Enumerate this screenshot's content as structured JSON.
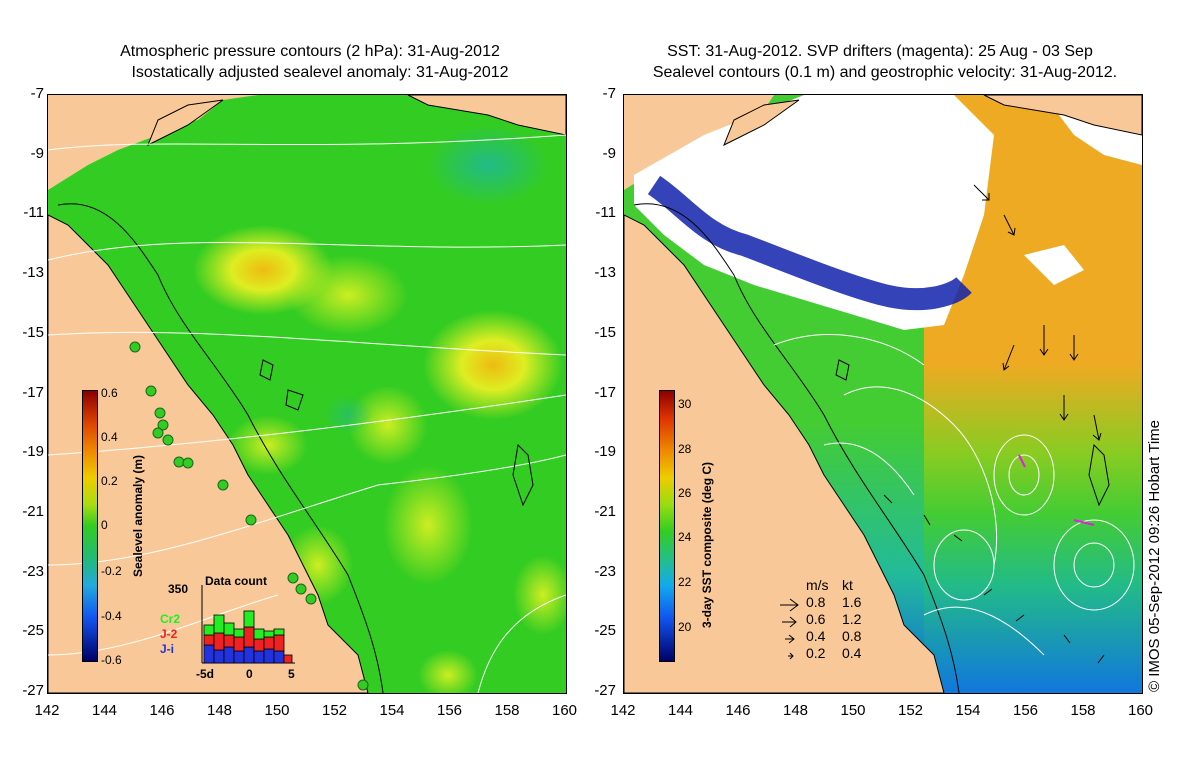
{
  "left_panel": {
    "title_line1": "Atmospheric pressure contours (2 hPa): 31-Aug-2012",
    "title_line2": "Isostatically adjusted sealevel anomaly: 31-Aug-2012",
    "colorbar_title": "Sealevel anomaly (m)",
    "colorbar_ticks": [
      "0.6",
      "0.4",
      "0.2",
      "0",
      "-0.2",
      "-0.4",
      "-0.6"
    ],
    "inset": {
      "title": "Data count",
      "ymax_label": "350",
      "legend": [
        {
          "label": "Cr2",
          "color": "#22ee22"
        },
        {
          "label": "J-2",
          "color": "#ee2222"
        },
        {
          "label": "J-i",
          "color": "#2233dd"
        }
      ],
      "xticks": [
        "-5d",
        "0",
        "5"
      ]
    }
  },
  "right_panel": {
    "title_line1": "SST: 31-Aug-2012. SVP drifters (magenta): 25 Aug - 03 Sep",
    "title_line2": "Sealevel contours (0.1 m) and geostrophic velocity: 31-Aug-2012.",
    "colorbar_title": "3-day SST composite (deg C)",
    "colorbar_ticks": [
      "30",
      "28",
      "26",
      "24",
      "22",
      "20"
    ],
    "velocity_legend": {
      "header_ms": "m/s",
      "header_kt": "kt",
      "rows": [
        {
          "ms": "0.8",
          "kt": "1.6"
        },
        {
          "ms": "0.6",
          "kt": "1.2"
        },
        {
          "ms": "0.4",
          "kt": "0.8"
        },
        {
          "ms": "0.2",
          "kt": "0.4"
        }
      ]
    }
  },
  "axes": {
    "yticks": [
      "-7",
      "-9",
      "-11",
      "-13",
      "-15",
      "-17",
      "-19",
      "-21",
      "-23",
      "-25",
      "-27"
    ],
    "xticks": [
      "142",
      "144",
      "146",
      "148",
      "150",
      "152",
      "154",
      "156",
      "158",
      "160"
    ]
  },
  "credit": "© IMOS 05-Sep-2012 09:26 Hobart Time",
  "colors": {
    "land": "#f9c898",
    "anomaly_green": "#33cc22",
    "anomaly_yellow": "#ccee11",
    "anomaly_orange": "#eebb11",
    "sst_orange": "#eeaa22",
    "sst_green": "#44cc33",
    "sst_blue": "#1188dd",
    "cloud": "#ffffff",
    "deep_blue": "#1122aa"
  }
}
